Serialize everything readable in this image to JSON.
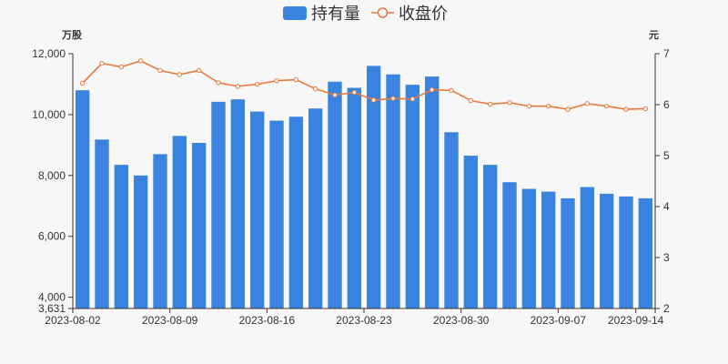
{
  "chart_data": {
    "type": "bar+line",
    "legend": [
      {
        "name": "持有量",
        "kind": "bar",
        "color": "#3a84e0"
      },
      {
        "name": "收盘价",
        "kind": "line",
        "color": "#e8793a"
      }
    ],
    "left_axis": {
      "unit": "万股",
      "min": 3631,
      "max": 12000,
      "ticks": [
        3631,
        4000,
        6000,
        8000,
        10000,
        12000
      ],
      "tick_labels": [
        "3,631",
        "4,000",
        "6,000",
        "8,000",
        "10,000",
        "12,000"
      ]
    },
    "right_axis": {
      "unit": "元",
      "min": 2,
      "max": 7,
      "ticks": [
        2,
        3,
        4,
        5,
        6,
        7
      ],
      "tick_labels": [
        "2",
        "3",
        "4",
        "5",
        "6",
        "7"
      ]
    },
    "x_labels": [
      {
        "index": 0,
        "label": "2023-08-02"
      },
      {
        "index": 5,
        "label": "2023-08-09"
      },
      {
        "index": 10,
        "label": "2023-08-16"
      },
      {
        "index": 15,
        "label": "2023-08-23"
      },
      {
        "index": 20,
        "label": "2023-08-30"
      },
      {
        "index": 25,
        "label": "2023-09-07"
      },
      {
        "index": 29,
        "label": "2023-09-14"
      }
    ],
    "holdings": [
      10800,
      9180,
      8350,
      8000,
      8700,
      9300,
      9070,
      10420,
      10500,
      10100,
      9800,
      9930,
      10200,
      11080,
      10880,
      11600,
      11320,
      10980,
      11250,
      9420,
      8650,
      8350,
      7780,
      7560,
      7470,
      7250,
      7620,
      7400,
      7310,
      7250
    ],
    "close": [
      6.42,
      6.81,
      6.74,
      6.86,
      6.67,
      6.59,
      6.67,
      6.43,
      6.36,
      6.4,
      6.47,
      6.49,
      6.31,
      6.19,
      6.24,
      6.09,
      6.12,
      6.11,
      6.29,
      6.28,
      6.08,
      6.01,
      6.04,
      5.97,
      5.97,
      5.91,
      6.02,
      5.97,
      5.91,
      5.92
    ],
    "grid": false,
    "legend_position": "top-center"
  }
}
